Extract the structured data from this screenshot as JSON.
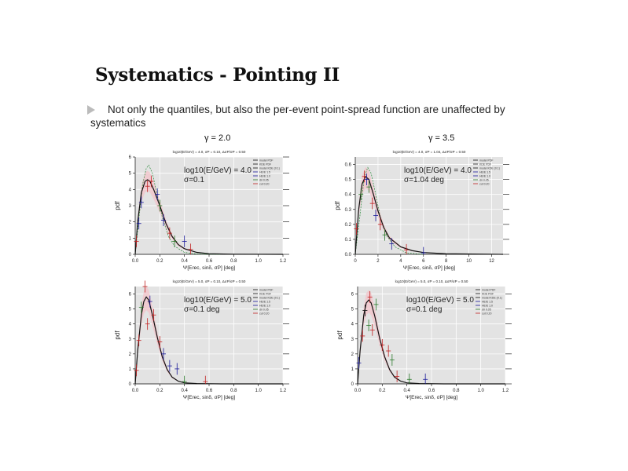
{
  "slide": {
    "title": "Systematics - Pointing II",
    "bullet_line1": "Not only the quantiles, but also the per-event point-spread function are unaffected by",
    "bullet_line2": "systematics",
    "column_labels": [
      "γ = 2.0",
      "γ = 3.5"
    ]
  },
  "legend_entries": [
    "model PDF",
    "KDE PDF",
    "model KDE (0.1)",
    "HE/E 1.5",
    "HE/E 1.0",
    "dir 0.05",
    "cut 0.20"
  ],
  "colors": {
    "panel": "#e3e3e3",
    "model": "#111111",
    "blue": "#1a1a9a",
    "green": "#2a7a2a",
    "red": "#c02020",
    "band": "#f4c0c8",
    "dashed": "#2a8a3a"
  },
  "chart_data": [
    {
      "type": "line",
      "subtitle": "log10(E/GeV) = 4.0, σP = 0.10, ΔσP/σP = 0.50",
      "annotation1": "log10(E/GeV) = 4.0",
      "annotation2": "σ=0.1",
      "xlabel": "Ψ[Erec, sinδ, σP]  [deg]",
      "ylabel": "pdf",
      "xlim": [
        0,
        1.2
      ],
      "ylim": [
        0,
        6
      ],
      "xticks": [
        "0.0",
        "0.2",
        "0.4",
        "0.6",
        "0.8",
        "1.0",
        "1.2"
      ],
      "xtickvals": [
        0,
        0.2,
        0.4,
        0.6,
        0.8,
        1.0,
        1.2
      ],
      "yticks": [
        "0",
        "1",
        "2",
        "3",
        "4",
        "5",
        "6"
      ],
      "ytickvals": [
        0,
        1,
        2,
        3,
        4,
        5,
        6
      ],
      "model": {
        "x": [
          0,
          0.02,
          0.05,
          0.08,
          0.1,
          0.12,
          0.15,
          0.2,
          0.25,
          0.3,
          0.35,
          0.4,
          0.5,
          0.6,
          0.8,
          1.2
        ],
        "y": [
          0,
          2,
          3.8,
          4.5,
          4.6,
          4.5,
          4.0,
          3.0,
          1.9,
          1.1,
          0.6,
          0.35,
          0.12,
          0.04,
          0.01,
          0
        ]
      },
      "dashed": {
        "x": [
          0,
          0.03,
          0.06,
          0.09,
          0.11,
          0.14,
          0.18,
          0.22,
          0.27,
          0.32,
          0.4,
          0.5,
          0.7
        ],
        "y": [
          0,
          2.2,
          4.3,
          5.3,
          5.5,
          5.0,
          3.6,
          2.3,
          1.1,
          0.5,
          0.12,
          0.02,
          0
        ]
      },
      "points": [
        [
          0.01,
          0.8,
          "red"
        ],
        [
          0.03,
          1.9,
          "blue"
        ],
        [
          0.05,
          3.2,
          "blue"
        ],
        [
          0.1,
          4.2,
          "red"
        ],
        [
          0.13,
          4.5,
          "red"
        ],
        [
          0.18,
          3.7,
          "blue"
        ],
        [
          0.2,
          3.0,
          "green"
        ],
        [
          0.23,
          2.1,
          "blue"
        ],
        [
          0.28,
          1.3,
          "red"
        ],
        [
          0.32,
          0.8,
          "green"
        ],
        [
          0.4,
          0.8,
          "blue"
        ],
        [
          0.45,
          0.3,
          "red"
        ]
      ]
    },
    {
      "type": "line",
      "subtitle": "log10(E/GeV) = 4.0, σP = 1.04, ΔσP/σP = 0.50",
      "annotation1": "log10(E/GeV) = 4.0",
      "annotation2": "σ=1.04 deg",
      "xlabel": "Ψ[Erec, sinδ, σP]  [deg]",
      "ylabel": "pdf",
      "xlim": [
        0,
        13
      ],
      "ylim": [
        0,
        0.65
      ],
      "xticks": [
        "0",
        "2",
        "4",
        "6",
        "8",
        "10",
        "12"
      ],
      "xtickvals": [
        0,
        2,
        4,
        6,
        8,
        10,
        12
      ],
      "yticks": [
        "0.0",
        "0.1",
        "0.2",
        "0.3",
        "0.4",
        "0.5",
        "0.6"
      ],
      "ytickvals": [
        0,
        0.1,
        0.2,
        0.3,
        0.4,
        0.5,
        0.6
      ],
      "model": {
        "x": [
          0,
          0.3,
          0.6,
          0.9,
          1.2,
          1.6,
          2,
          2.5,
          3,
          4,
          5,
          6,
          8,
          13
        ],
        "y": [
          0,
          0.3,
          0.47,
          0.52,
          0.5,
          0.4,
          0.29,
          0.18,
          0.11,
          0.05,
          0.025,
          0.012,
          0.004,
          0
        ]
      },
      "dashed": {
        "x": [
          0,
          0.4,
          0.8,
          1.1,
          1.4,
          1.8,
          2.2,
          2.8,
          3.5,
          4.5,
          6
        ],
        "y": [
          0,
          0.25,
          0.52,
          0.58,
          0.54,
          0.4,
          0.25,
          0.12,
          0.05,
          0.01,
          0
        ]
      },
      "points": [
        [
          0.1,
          0.17,
          "red"
        ],
        [
          0.5,
          0.4,
          "green"
        ],
        [
          0.8,
          0.52,
          "red"
        ],
        [
          1.0,
          0.5,
          "blue"
        ],
        [
          1.2,
          0.45,
          "green"
        ],
        [
          1.5,
          0.34,
          "red"
        ],
        [
          1.8,
          0.26,
          "blue"
        ],
        [
          2.2,
          0.2,
          "red"
        ],
        [
          2.6,
          0.13,
          "green"
        ],
        [
          3.2,
          0.07,
          "blue"
        ],
        [
          4.5,
          0.03,
          "red"
        ],
        [
          6,
          0.01,
          "blue"
        ]
      ]
    },
    {
      "type": "line",
      "subtitle": "log10(E/GeV) = 5.0, σP = 0.10, ΔσP/σP = 0.50",
      "annotation1": "log10(E/GeV) = 5.0",
      "annotation2": "σ=0.1 deg",
      "xlabel": "Ψ[Erec, sinδ, σP]  [deg]",
      "ylabel": "pdf",
      "xlim": [
        0,
        1.2
      ],
      "ylim": [
        0,
        6.5
      ],
      "xticks": [
        "0.0",
        "0.2",
        "0.4",
        "0.6",
        "0.8",
        "1.0",
        "1.2"
      ],
      "xtickvals": [
        0,
        0.2,
        0.4,
        0.6,
        0.8,
        1.0,
        1.2
      ],
      "yticks": [
        "0",
        "1",
        "2",
        "3",
        "4",
        "5",
        "6"
      ],
      "ytickvals": [
        0,
        1,
        2,
        3,
        4,
        5,
        6
      ],
      "model": {
        "x": [
          0,
          0.02,
          0.05,
          0.07,
          0.09,
          0.11,
          0.14,
          0.18,
          0.22,
          0.26,
          0.3,
          0.35,
          0.4,
          0.5,
          0.7,
          1.2
        ],
        "y": [
          0,
          2.2,
          4.6,
          5.5,
          5.8,
          5.6,
          4.6,
          3.1,
          1.8,
          0.95,
          0.45,
          0.18,
          0.07,
          0.02,
          0,
          0
        ]
      },
      "dashed": null,
      "points": [
        [
          0.01,
          0.9,
          "red"
        ],
        [
          0.03,
          2.9,
          "red"
        ],
        [
          0.05,
          5.1,
          "green"
        ],
        [
          0.08,
          6.5,
          "red"
        ],
        [
          0.1,
          4.0,
          "red"
        ],
        [
          0.12,
          5.5,
          "blue"
        ],
        [
          0.15,
          4.6,
          "red"
        ],
        [
          0.2,
          2.8,
          "red"
        ],
        [
          0.23,
          2.0,
          "blue"
        ],
        [
          0.28,
          1.2,
          "blue"
        ],
        [
          0.34,
          1.0,
          "blue"
        ],
        [
          0.4,
          0.15,
          "green"
        ],
        [
          0.57,
          0.15,
          "red"
        ]
      ]
    },
    {
      "type": "line",
      "subtitle": "log10(E/GeV) = 5.0, σP = 0.10, ΔσP/σP = 0.50",
      "annotation1": "log10(E/GeV) = 5.0",
      "annotation2": "σ=0.1 deg",
      "xlabel": "Ψ[Erec, sinδ, σP]  [deg]",
      "ylabel": "pdf",
      "xlim": [
        0,
        1.2
      ],
      "ylim": [
        0,
        6.5
      ],
      "xticks": [
        "0.0",
        "0.2",
        "0.4",
        "0.6",
        "0.8",
        "1.0",
        "1.2"
      ],
      "xtickvals": [
        0,
        0.2,
        0.4,
        0.6,
        0.8,
        1.0,
        1.2
      ],
      "yticks": [
        "0",
        "1",
        "2",
        "3",
        "4",
        "5",
        "6"
      ],
      "ytickvals": [
        0,
        1,
        2,
        3,
        4,
        5,
        6
      ],
      "model": {
        "x": [
          0,
          0.02,
          0.05,
          0.07,
          0.09,
          0.11,
          0.14,
          0.18,
          0.22,
          0.26,
          0.3,
          0.35,
          0.4,
          0.5,
          0.7,
          1.2
        ],
        "y": [
          0,
          2.2,
          4.6,
          5.4,
          5.6,
          5.4,
          4.5,
          3.0,
          1.8,
          0.95,
          0.45,
          0.18,
          0.07,
          0.02,
          0,
          0
        ]
      },
      "dashed": null,
      "points": [
        [
          0.01,
          1.4,
          "blue"
        ],
        [
          0.04,
          3.2,
          "red"
        ],
        [
          0.06,
          4.9,
          "black"
        ],
        [
          0.09,
          3.9,
          "green"
        ],
        [
          0.1,
          5.8,
          "red"
        ],
        [
          0.12,
          3.6,
          "red"
        ],
        [
          0.15,
          5.3,
          "green"
        ],
        [
          0.2,
          2.6,
          "red"
        ],
        [
          0.25,
          2.2,
          "red"
        ],
        [
          0.28,
          1.6,
          "green"
        ],
        [
          0.32,
          0.5,
          "red"
        ],
        [
          0.42,
          0.3,
          "green"
        ],
        [
          0.55,
          0.3,
          "blue"
        ]
      ]
    }
  ]
}
